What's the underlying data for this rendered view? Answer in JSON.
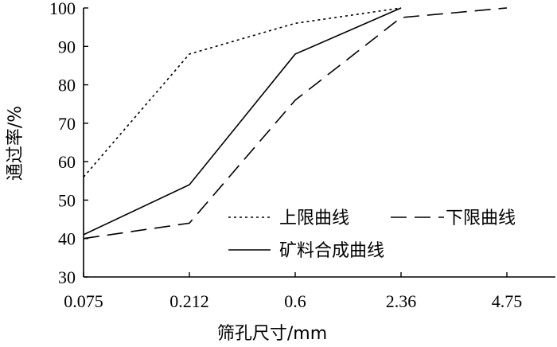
{
  "chart_data": {
    "type": "line",
    "categories": [
      "0.075",
      "0.212",
      "0.6",
      "2.36",
      "4.75"
    ],
    "xlabel": "筛孔尺寸/mm",
    "ylabel": "通过率/%",
    "ylim": [
      30,
      100
    ],
    "yticks": [
      "30",
      "40",
      "50",
      "60",
      "70",
      "80",
      "90",
      "100"
    ],
    "grid": false,
    "legend_position": "bottom-right inside plot",
    "series": [
      {
        "name": "上限曲线",
        "style": "dotted",
        "values": [
          56,
          88,
          96,
          100,
          null
        ]
      },
      {
        "name": "下限曲线",
        "style": "dashed",
        "values": [
          40,
          44,
          76,
          97.5,
          100
        ]
      },
      {
        "name": "矿料合成曲线",
        "style": "solid",
        "values": [
          41,
          54,
          88,
          100,
          null
        ]
      }
    ]
  }
}
